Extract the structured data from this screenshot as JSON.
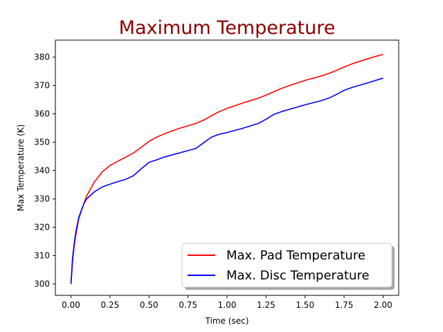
{
  "chart_data": {
    "type": "line",
    "title": "Maximum Temperature",
    "title_color": "#8b0000",
    "xlabel": "Time (sec)",
    "ylabel": "Max Temperature (K)",
    "xlim": [
      -0.1,
      2.1
    ],
    "ylim": [
      296,
      386
    ],
    "xticks": [
      0.0,
      0.25,
      0.5,
      0.75,
      1.0,
      1.25,
      1.5,
      1.75,
      2.0
    ],
    "xtick_labels": [
      "0.00",
      "0.25",
      "0.50",
      "0.75",
      "1.00",
      "1.25",
      "1.50",
      "1.75",
      "2.00"
    ],
    "yticks": [
      300,
      310,
      320,
      330,
      340,
      350,
      360,
      370,
      380
    ],
    "ytick_labels": [
      "300",
      "310",
      "320",
      "330",
      "340",
      "350",
      "360",
      "370",
      "380"
    ],
    "grid": false,
    "legend_position": "bottom-right",
    "series": [
      {
        "name": "Max. Pad Temperature",
        "color": "#ff0000",
        "x": [
          0,
          0.01,
          0.02,
          0.03,
          0.05,
          0.08,
          0.1,
          0.15,
          0.2,
          0.25,
          0.3,
          0.35,
          0.4,
          0.45,
          0.5,
          0.55,
          0.6,
          0.7,
          0.8,
          0.85,
          0.9,
          0.95,
          1.0,
          1.1,
          1.2,
          1.25,
          1.3,
          1.35,
          1.4,
          1.5,
          1.6,
          1.65,
          1.7,
          1.75,
          1.8,
          1.9,
          2.0
        ],
        "y": [
          300,
          308,
          313,
          317,
          323,
          328,
          331,
          336,
          339.5,
          341.8,
          343.3,
          344.7,
          346.2,
          348.2,
          350.3,
          351.8,
          353.0,
          355.0,
          356.6,
          357.8,
          359.3,
          360.8,
          361.9,
          363.8,
          365.5,
          366.6,
          367.8,
          369.0,
          370.0,
          371.8,
          373.3,
          374.2,
          375.3,
          376.5,
          377.6,
          379.4,
          381.0
        ]
      },
      {
        "name": "Max. Disc Temperature",
        "color": "#0000ff",
        "x": [
          0,
          0.01,
          0.02,
          0.03,
          0.05,
          0.08,
          0.1,
          0.15,
          0.2,
          0.25,
          0.3,
          0.35,
          0.4,
          0.45,
          0.5,
          0.55,
          0.6,
          0.7,
          0.8,
          0.85,
          0.9,
          0.95,
          1.0,
          1.1,
          1.2,
          1.25,
          1.3,
          1.35,
          1.4,
          1.5,
          1.6,
          1.65,
          1.7,
          1.75,
          1.8,
          1.9,
          2.0
        ],
        "y": [
          300,
          309,
          314,
          318,
          323.5,
          328,
          330,
          332.5,
          334.2,
          335.2,
          336.1,
          336.9,
          338.2,
          340.6,
          342.9,
          343.8,
          344.8,
          346.3,
          347.8,
          349.8,
          351.8,
          352.8,
          353.4,
          354.9,
          356.6,
          358.1,
          359.8,
          360.8,
          361.6,
          363.2,
          364.6,
          365.5,
          366.8,
          368.3,
          369.3,
          370.9,
          372.6
        ]
      }
    ]
  }
}
